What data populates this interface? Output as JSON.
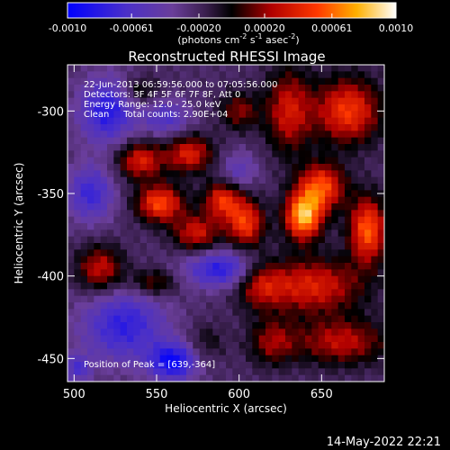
{
  "chart_data": {
    "type": "heatmap",
    "title": "Reconstructed RHESSI Image",
    "xlabel": "Heliocentric X (arcsec)",
    "ylabel": "Heliocentric Y (arcsec)",
    "xlim": [
      496,
      688
    ],
    "ylim": [
      -464,
      -272
    ],
    "x_ticks": [
      500,
      550,
      600,
      650
    ],
    "y_ticks": [
      -300,
      -350,
      -400,
      -450
    ],
    "colorbar": {
      "ticks": [
        "-0.0010",
        "-0.00061",
        "-0.00020",
        "0.00020",
        "0.00061",
        "0.0010"
      ],
      "tick_values": [
        -0.001,
        -0.00061,
        -0.0002,
        0.0002,
        0.00061,
        0.001
      ],
      "range": [
        -0.001,
        0.001
      ],
      "label_parts": [
        "(photons cm",
        "-2",
        " s",
        "-1",
        " asec",
        "-2",
        ")"
      ],
      "colormap": "blue-purple-black-red-orange-yellow-white"
    },
    "info_lines": [
      "22-Jun-2013 06:59:56.000 to 07:05:56.000",
      "Detectors: 3F 4F 5F 6F 7F 8F, Att 0",
      "Energy Range: 12.0 - 25.0 keV",
      "Clean     Total counts: 2.90E+04"
    ],
    "peak_label": "Position of Peak = [639,-364]",
    "peak_position": [
      639,
      -364
    ],
    "sources": [
      {
        "x": 639,
        "y": -364,
        "rx": 8,
        "ry": 10,
        "amp": 0.001
      },
      {
        "x": 650,
        "y": -346,
        "rx": 10,
        "ry": 10,
        "amp": 0.00075
      },
      {
        "x": 678,
        "y": -372,
        "rx": 8,
        "ry": 14,
        "amp": 0.0008
      },
      {
        "x": 666,
        "y": -300,
        "rx": 14,
        "ry": 14,
        "amp": 0.0007
      },
      {
        "x": 630,
        "y": -300,
        "rx": 10,
        "ry": 18,
        "amp": 0.00055
      },
      {
        "x": 644,
        "y": -406,
        "rx": 22,
        "ry": 12,
        "amp": 0.0006
      },
      {
        "x": 662,
        "y": -440,
        "rx": 20,
        "ry": 10,
        "amp": 0.0005
      },
      {
        "x": 604,
        "y": -368,
        "rx": 8,
        "ry": 10,
        "amp": 0.0007
      },
      {
        "x": 590,
        "y": -354,
        "rx": 8,
        "ry": 8,
        "amp": 0.00065
      },
      {
        "x": 552,
        "y": -356,
        "rx": 10,
        "ry": 8,
        "amp": 0.00075
      },
      {
        "x": 540,
        "y": -330,
        "rx": 10,
        "ry": 8,
        "amp": 0.0006
      },
      {
        "x": 570,
        "y": -326,
        "rx": 10,
        "ry": 8,
        "amp": 0.0006
      },
      {
        "x": 574,
        "y": -374,
        "rx": 10,
        "ry": 8,
        "amp": 0.00055
      },
      {
        "x": 516,
        "y": -396,
        "rx": 10,
        "ry": 10,
        "amp": 0.00055
      },
      {
        "x": 548,
        "y": -404,
        "rx": 10,
        "ry": 6,
        "amp": 0.0004
      },
      {
        "x": 612,
        "y": -404,
        "rx": 10,
        "ry": 10,
        "amp": 0.00045
      },
      {
        "x": 600,
        "y": -300,
        "rx": 8,
        "ry": 8,
        "amp": 0.0004
      },
      {
        "x": 540,
        "y": -288,
        "rx": 8,
        "ry": 6,
        "amp": 0.0003
      },
      {
        "x": 620,
        "y": -440,
        "rx": 10,
        "ry": 10,
        "amp": 0.0004
      },
      {
        "x": 580,
        "y": -440,
        "rx": 8,
        "ry": 8,
        "amp": 0.0002
      },
      {
        "x": 520,
        "y": -300,
        "rx": 12,
        "ry": 14,
        "amp": -0.0006
      },
      {
        "x": 510,
        "y": -350,
        "rx": 10,
        "ry": 12,
        "amp": -0.0005
      },
      {
        "x": 530,
        "y": -430,
        "rx": 18,
        "ry": 16,
        "amp": -0.00055
      },
      {
        "x": 590,
        "y": -396,
        "rx": 16,
        "ry": 8,
        "amp": -0.0006
      },
      {
        "x": 556,
        "y": -304,
        "rx": 10,
        "ry": 8,
        "amp": -0.0004
      },
      {
        "x": 600,
        "y": -336,
        "rx": 8,
        "ry": 8,
        "amp": -0.0003
      },
      {
        "x": 560,
        "y": -452,
        "rx": 10,
        "ry": 8,
        "amp": -0.0007
      },
      {
        "x": 502,
        "y": -456,
        "rx": 6,
        "ry": 6,
        "amp": -0.0004
      }
    ],
    "background_level": -0.00022,
    "grid": false
  },
  "footer_timestamp": "14-May-2022 22:21"
}
